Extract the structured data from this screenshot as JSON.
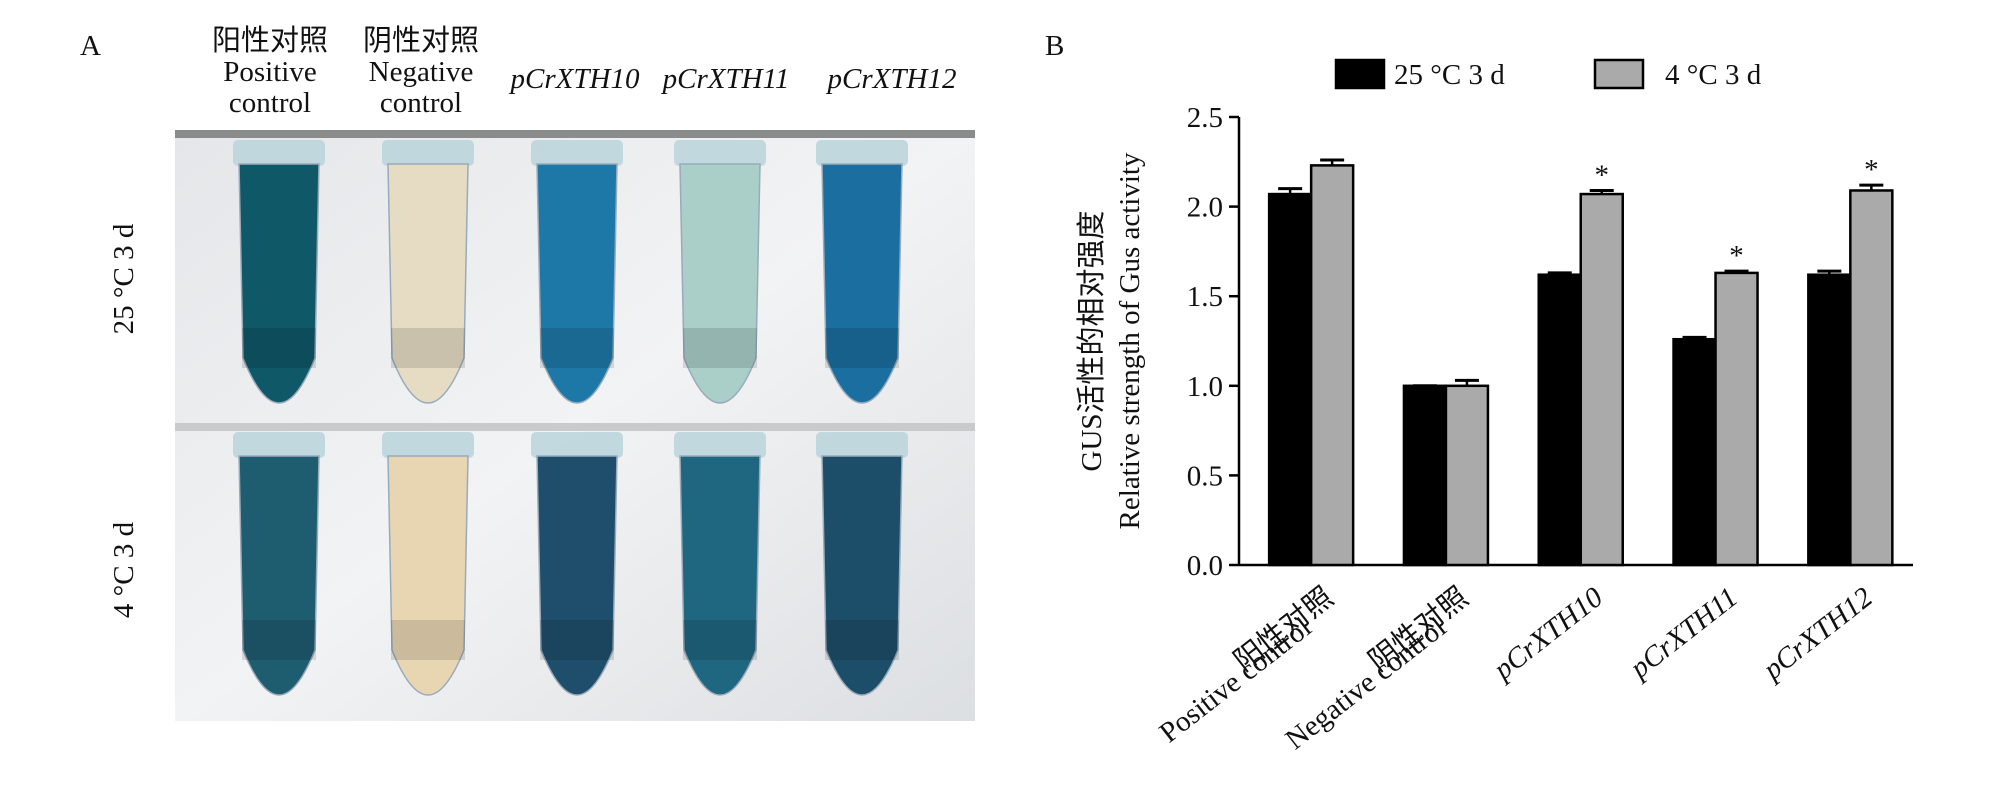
{
  "panel_a": {
    "label": "A",
    "columns": [
      [
        "阳性对照",
        "Positive",
        "control"
      ],
      [
        "阴性对照",
        "Negative",
        "control"
      ],
      [
        "pCrXTH10"
      ],
      [
        "pCrXTH11"
      ],
      [
        "pCrXTH12"
      ]
    ],
    "column_italic": [
      false,
      false,
      true,
      true,
      true
    ],
    "rows": [
      "25 °C 3 d",
      "4 °C 3 d"
    ]
  },
  "chart_data": {
    "type": "bar",
    "panel_label": "B",
    "y_label": [
      "GUS活性的相对强度",
      "Relative strength of Gus activity"
    ],
    "categories": [
      [
        "阳性对照",
        "Positive control"
      ],
      [
        "阴性对照",
        "Negative control"
      ],
      [
        "pCrXTH10"
      ],
      [
        "pCrXTH11"
      ],
      [
        "pCrXTH12"
      ]
    ],
    "category_italic": [
      false,
      false,
      true,
      true,
      true
    ],
    "series": [
      {
        "name": "25 °C 3 d",
        "color": "#000000",
        "values": [
          2.07,
          1.0,
          1.62,
          1.26,
          1.62
        ],
        "errors": [
          0.03,
          0.0,
          0.01,
          0.01,
          0.02
        ]
      },
      {
        "name": "4 °C 3 d",
        "color": "#aaaaaa",
        "values": [
          2.23,
          1.0,
          2.07,
          1.63,
          2.09
        ],
        "errors": [
          0.03,
          0.03,
          0.02,
          0.01,
          0.03
        ],
        "significance": [
          null,
          null,
          "*",
          "*",
          "*"
        ]
      }
    ],
    "ylim": [
      0,
      2.5
    ],
    "yticks": [
      {
        "value": 0,
        "label": "0.0"
      },
      0.5,
      {
        "value": 1,
        "label": "1.0"
      },
      1.5,
      {
        "value": 2,
        "label": "2.0"
      },
      2.5
    ],
    "legend": "top"
  }
}
